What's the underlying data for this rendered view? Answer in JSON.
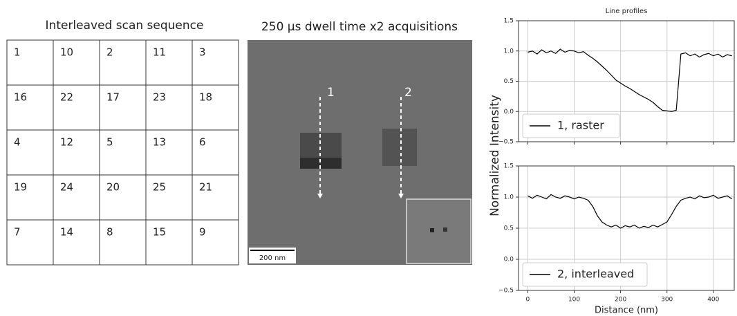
{
  "table": {
    "title": "Interleaved scan sequence",
    "rows": [
      [
        "1",
        "10",
        "2",
        "11",
        "3"
      ],
      [
        "16",
        "22",
        "17",
        "23",
        "18"
      ],
      [
        "4",
        "12",
        "5",
        "13",
        "6"
      ],
      [
        "19",
        "24",
        "20",
        "25",
        "21"
      ],
      [
        "7",
        "14",
        "8",
        "15",
        "9"
      ]
    ]
  },
  "image": {
    "title": "250 µs dwell time x2 acquisitions",
    "labels": [
      "1",
      "2"
    ],
    "scale_bar": "200 nm"
  },
  "chart_data": [
    {
      "type": "line",
      "title": "Line profiles",
      "ylabel": "Normalized Intensity",
      "x": [
        0,
        10,
        20,
        30,
        40,
        50,
        60,
        70,
        80,
        90,
        100,
        110,
        120,
        130,
        140,
        150,
        160,
        170,
        180,
        190,
        200,
        210,
        220,
        230,
        240,
        250,
        260,
        270,
        280,
        290,
        300,
        310,
        320,
        330,
        340,
        350,
        360,
        370,
        380,
        390,
        400,
        410,
        420,
        430,
        440
      ],
      "series": [
        {
          "name": "1, raster",
          "color": "#000000",
          "values": [
            0.98,
            1.0,
            0.95,
            1.02,
            0.97,
            1.0,
            0.96,
            1.03,
            0.98,
            1.01,
            1.0,
            0.97,
            0.99,
            0.93,
            0.88,
            0.82,
            0.75,
            0.68,
            0.6,
            0.52,
            0.47,
            0.42,
            0.38,
            0.33,
            0.28,
            0.24,
            0.2,
            0.15,
            0.08,
            0.02,
            0.01,
            0.0,
            0.02,
            0.95,
            0.97,
            0.92,
            0.95,
            0.9,
            0.94,
            0.96,
            0.92,
            0.95,
            0.9,
            0.94,
            0.92
          ]
        }
      ],
      "xlim": [
        -20,
        445
      ],
      "ylim": [
        -0.5,
        1.5
      ],
      "xticks": [
        0,
        100,
        200,
        300,
        400
      ],
      "yticks": [
        {
          "value": -0.5,
          "label": "−0.5"
        },
        {
          "value": 0,
          "label": "0.0"
        },
        0.5,
        {
          "value": 1,
          "label": "1.0"
        },
        1.5
      ],
      "grid": true,
      "legend": "lower left"
    },
    {
      "type": "line",
      "xlabel": "Distance (nm)",
      "x": [
        0,
        10,
        20,
        30,
        40,
        50,
        60,
        70,
        80,
        90,
        100,
        110,
        120,
        130,
        140,
        150,
        160,
        170,
        180,
        190,
        200,
        210,
        220,
        230,
        240,
        250,
        260,
        270,
        280,
        290,
        300,
        310,
        320,
        330,
        340,
        350,
        360,
        370,
        380,
        390,
        400,
        410,
        420,
        430,
        440
      ],
      "series": [
        {
          "name": "2, interleaved",
          "color": "#000000",
          "values": [
            1.02,
            0.98,
            1.03,
            1.0,
            0.97,
            1.04,
            1.0,
            0.98,
            1.02,
            1.0,
            0.97,
            1.0,
            0.98,
            0.95,
            0.85,
            0.7,
            0.6,
            0.55,
            0.52,
            0.55,
            0.5,
            0.54,
            0.52,
            0.55,
            0.5,
            0.53,
            0.51,
            0.55,
            0.52,
            0.56,
            0.6,
            0.72,
            0.85,
            0.95,
            0.98,
            1.0,
            0.97,
            1.02,
            0.99,
            1.0,
            1.03,
            0.98,
            1.0,
            1.02,
            0.97
          ]
        }
      ],
      "xlim": [
        -20,
        445
      ],
      "ylim": [
        -0.5,
        1.5
      ],
      "xticks": [
        0,
        100,
        200,
        300,
        400
      ],
      "yticks": [
        {
          "value": -0.5,
          "label": "−0.5"
        },
        {
          "value": 0,
          "label": "0.0"
        },
        0.5,
        {
          "value": 1,
          "label": "1.0"
        },
        1.5
      ],
      "grid": true,
      "legend": "lower left",
      "show_xtick_labels": true
    }
  ]
}
